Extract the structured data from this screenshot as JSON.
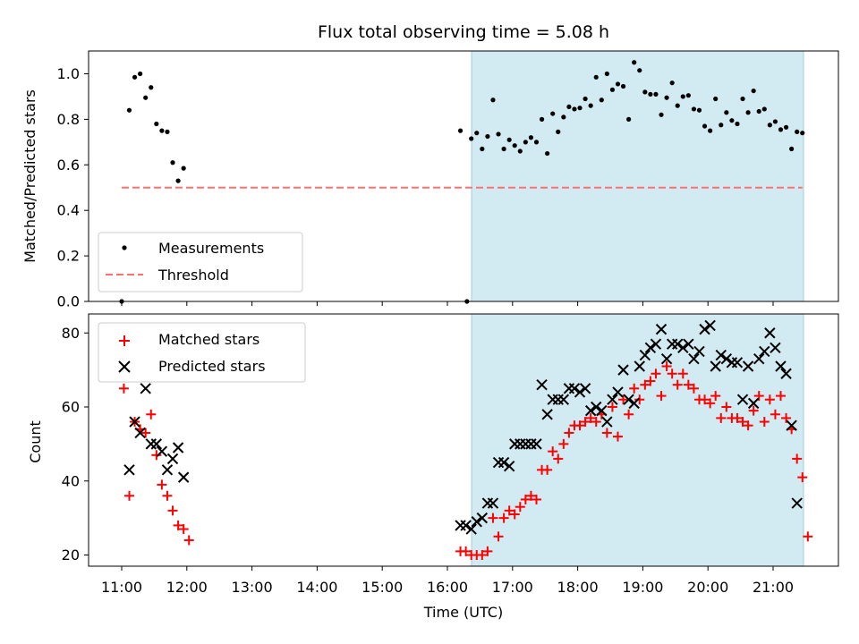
{
  "chart_data": [
    {
      "type": "scatter",
      "title": "Flux total observing time = 5.08 h",
      "xlabel": "",
      "ylabel": "Matched/Predicted stars",
      "ylim": [
        0.0,
        1.1
      ],
      "yticks": [
        "0.0",
        "0.2",
        "0.4",
        "0.6",
        "0.8",
        "1.0"
      ],
      "legend_position": "lower-left",
      "highlight_span": {
        "start": "16:24",
        "end": "21:30",
        "color": "#add8e6"
      },
      "series": [
        {
          "name": "Measurements",
          "marker": "dot",
          "color": "#000000",
          "points": [
            [
              "11:00",
              0.0
            ],
            [
              "11:07",
              0.84
            ],
            [
              "11:12",
              0.985
            ],
            [
              "11:17",
              1.0
            ],
            [
              "11:22",
              0.895
            ],
            [
              "11:27",
              0.94
            ],
            [
              "11:32",
              0.78
            ],
            [
              "11:37",
              0.75
            ],
            [
              "11:42",
              0.745
            ],
            [
              "11:47",
              0.61
            ],
            [
              "11:52",
              0.53
            ],
            [
              "11:57",
              0.585
            ],
            [
              "16:12",
              0.75
            ],
            [
              "16:18",
              0.0
            ],
            [
              "16:22",
              0.715
            ],
            [
              "16:27",
              0.74
            ],
            [
              "16:32",
              0.67
            ],
            [
              "16:37",
              0.725
            ],
            [
              "16:42",
              0.885
            ],
            [
              "16:47",
              0.735
            ],
            [
              "16:52",
              0.67
            ],
            [
              "16:57",
              0.71
            ],
            [
              "17:02",
              0.685
            ],
            [
              "17:07",
              0.66
            ],
            [
              "17:12",
              0.7
            ],
            [
              "17:17",
              0.72
            ],
            [
              "17:22",
              0.7
            ],
            [
              "17:27",
              0.8
            ],
            [
              "17:32",
              0.65
            ],
            [
              "17:37",
              0.825
            ],
            [
              "17:42",
              0.745
            ],
            [
              "17:47",
              0.81
            ],
            [
              "17:52",
              0.855
            ],
            [
              "17:57",
              0.845
            ],
            [
              "18:02",
              0.85
            ],
            [
              "18:07",
              0.89
            ],
            [
              "18:12",
              0.86
            ],
            [
              "18:17",
              0.985
            ],
            [
              "18:22",
              0.885
            ],
            [
              "18:27",
              1.0
            ],
            [
              "18:32",
              0.93
            ],
            [
              "18:37",
              0.955
            ],
            [
              "18:42",
              0.945
            ],
            [
              "18:47",
              0.8
            ],
            [
              "18:52",
              1.05
            ],
            [
              "18:57",
              1.015
            ],
            [
              "19:02",
              0.92
            ],
            [
              "19:07",
              0.91
            ],
            [
              "19:12",
              0.91
            ],
            [
              "19:17",
              0.82
            ],
            [
              "19:22",
              0.895
            ],
            [
              "19:27",
              0.96
            ],
            [
              "19:32",
              0.86
            ],
            [
              "19:37",
              0.9
            ],
            [
              "19:42",
              0.905
            ],
            [
              "19:47",
              0.845
            ],
            [
              "19:52",
              0.84
            ],
            [
              "19:57",
              0.77
            ],
            [
              "20:02",
              0.75
            ],
            [
              "20:07",
              0.89
            ],
            [
              "20:12",
              0.775
            ],
            [
              "20:17",
              0.83
            ],
            [
              "20:22",
              0.795
            ],
            [
              "20:27",
              0.78
            ],
            [
              "20:32",
              0.89
            ],
            [
              "20:37",
              0.83
            ],
            [
              "20:42",
              0.925
            ],
            [
              "20:47",
              0.835
            ],
            [
              "20:52",
              0.845
            ],
            [
              "20:57",
              0.775
            ],
            [
              "21:02",
              0.79
            ],
            [
              "21:07",
              0.755
            ],
            [
              "21:12",
              0.765
            ],
            [
              "21:17",
              0.67
            ],
            [
              "21:22",
              0.745
            ],
            [
              "21:27",
              0.74
            ]
          ]
        },
        {
          "name": "Threshold",
          "marker": "dashed-line",
          "color": "#ff7070",
          "points": [
            [
              "11:00",
              0.5
            ],
            [
              "21:27",
              0.5
            ]
          ]
        }
      ]
    },
    {
      "type": "scatter",
      "xlabel": "Time (UTC)",
      "ylabel": "Count",
      "ylim": [
        16.5,
        85.5
      ],
      "yticks": [
        "20",
        "40",
        "60",
        "80"
      ],
      "xlim": [
        "10:32",
        "21:55"
      ],
      "xticks": [
        "11:00",
        "12:00",
        "13:00",
        "14:00",
        "15:00",
        "16:00",
        "17:00",
        "18:00",
        "19:00",
        "20:00",
        "21:00"
      ],
      "legend_position": "top-left",
      "highlight_span": {
        "start": "16:24",
        "end": "21:30",
        "color": "#add8e6"
      },
      "series": [
        {
          "name": "Matched stars",
          "marker": "plus",
          "color": "#ff0000",
          "points": [
            [
              "11:02",
              65
            ],
            [
              "11:07",
              36
            ],
            [
              "11:12",
              56
            ],
            [
              "11:17",
              54
            ],
            [
              "11:22",
              53
            ],
            [
              "11:27",
              58
            ],
            [
              "11:32",
              47
            ],
            [
              "11:37",
              39
            ],
            [
              "11:42",
              36
            ],
            [
              "11:47",
              32
            ],
            [
              "11:52",
              28
            ],
            [
              "11:57",
              27
            ],
            [
              "12:02",
              24
            ],
            [
              "16:12",
              21
            ],
            [
              "16:17",
              21
            ],
            [
              "16:22",
              20
            ],
            [
              "16:27",
              20
            ],
            [
              "16:32",
              20
            ],
            [
              "16:37",
              21
            ],
            [
              "16:42",
              30
            ],
            [
              "16:47",
              25
            ],
            [
              "16:52",
              30
            ],
            [
              "16:57",
              32
            ],
            [
              "17:02",
              31
            ],
            [
              "17:07",
              33
            ],
            [
              "17:12",
              35
            ],
            [
              "17:17",
              36
            ],
            [
              "17:22",
              35
            ],
            [
              "17:27",
              43
            ],
            [
              "17:32",
              43
            ],
            [
              "17:37",
              48
            ],
            [
              "17:42",
              46
            ],
            [
              "17:47",
              50
            ],
            [
              "17:52",
              53
            ],
            [
              "17:57",
              55
            ],
            [
              "18:02",
              55
            ],
            [
              "18:07",
              56
            ],
            [
              "18:12",
              57
            ],
            [
              "18:17",
              56
            ],
            [
              "18:22",
              58
            ],
            [
              "18:27",
              53
            ],
            [
              "18:32",
              60
            ],
            [
              "18:37",
              52
            ],
            [
              "18:42",
              62
            ],
            [
              "18:47",
              58
            ],
            [
              "18:52",
              65
            ],
            [
              "18:57",
              62
            ],
            [
              "19:02",
              66
            ],
            [
              "19:07",
              67
            ],
            [
              "19:12",
              69
            ],
            [
              "19:17",
              63
            ],
            [
              "19:22",
              71
            ],
            [
              "19:27",
              69
            ],
            [
              "19:32",
              66
            ],
            [
              "19:37",
              69
            ],
            [
              "19:42",
              66
            ],
            [
              "19:47",
              65
            ],
            [
              "19:52",
              62
            ],
            [
              "19:57",
              62
            ],
            [
              "20:02",
              61
            ],
            [
              "20:07",
              63
            ],
            [
              "20:12",
              57
            ],
            [
              "20:17",
              60
            ],
            [
              "20:22",
              57
            ],
            [
              "20:27",
              57
            ],
            [
              "20:32",
              56
            ],
            [
              "20:37",
              55
            ],
            [
              "20:42",
              59
            ],
            [
              "20:47",
              63
            ],
            [
              "20:52",
              56
            ],
            [
              "20:57",
              62
            ],
            [
              "21:02",
              58
            ],
            [
              "21:07",
              63
            ],
            [
              "21:12",
              57
            ],
            [
              "21:17",
              54
            ],
            [
              "21:22",
              46
            ],
            [
              "21:27",
              41
            ],
            [
              "21:32",
              25
            ]
          ]
        },
        {
          "name": "Predicted stars",
          "marker": "x",
          "color": "#000000",
          "points": [
            [
              "11:07",
              43
            ],
            [
              "11:12",
              56
            ],
            [
              "11:17",
              53
            ],
            [
              "11:22",
              65
            ],
            [
              "11:27",
              50
            ],
            [
              "11:32",
              50
            ],
            [
              "11:37",
              48
            ],
            [
              "11:42",
              43
            ],
            [
              "11:47",
              46
            ],
            [
              "11:52",
              49
            ],
            [
              "11:57",
              41
            ],
            [
              "16:12",
              28
            ],
            [
              "16:17",
              28
            ],
            [
              "16:22",
              27
            ],
            [
              "16:27",
              29
            ],
            [
              "16:32",
              30
            ],
            [
              "16:37",
              34
            ],
            [
              "16:42",
              34
            ],
            [
              "16:47",
              45
            ],
            [
              "16:52",
              45
            ],
            [
              "16:57",
              44
            ],
            [
              "17:02",
              50
            ],
            [
              "17:07",
              50
            ],
            [
              "17:12",
              50
            ],
            [
              "17:17",
              50
            ],
            [
              "17:22",
              50
            ],
            [
              "17:27",
              66
            ],
            [
              "17:32",
              58
            ],
            [
              "17:37",
              62
            ],
            [
              "17:42",
              62
            ],
            [
              "17:47",
              62
            ],
            [
              "17:52",
              65
            ],
            [
              "17:57",
              65
            ],
            [
              "18:02",
              64
            ],
            [
              "18:07",
              65
            ],
            [
              "18:12",
              59
            ],
            [
              "18:17",
              60
            ],
            [
              "18:22",
              59
            ],
            [
              "18:27",
              56
            ],
            [
              "18:32",
              62
            ],
            [
              "18:37",
              64
            ],
            [
              "18:42",
              70
            ],
            [
              "18:47",
              62
            ],
            [
              "18:52",
              61
            ],
            [
              "18:57",
              71
            ],
            [
              "19:02",
              74
            ],
            [
              "19:07",
              76
            ],
            [
              "19:12",
              77
            ],
            [
              "19:17",
              81
            ],
            [
              "19:22",
              73
            ],
            [
              "19:27",
              77
            ],
            [
              "19:32",
              77
            ],
            [
              "19:37",
              76
            ],
            [
              "19:42",
              77
            ],
            [
              "19:47",
              73
            ],
            [
              "19:52",
              75
            ],
            [
              "19:57",
              81
            ],
            [
              "20:02",
              82
            ],
            [
              "20:07",
              71
            ],
            [
              "20:12",
              74
            ],
            [
              "20:17",
              73
            ],
            [
              "20:22",
              72
            ],
            [
              "20:27",
              72
            ],
            [
              "20:32",
              62
            ],
            [
              "20:37",
              71
            ],
            [
              "20:42",
              61
            ],
            [
              "20:47",
              73
            ],
            [
              "20:52",
              75
            ],
            [
              "20:57",
              80
            ],
            [
              "21:02",
              76
            ],
            [
              "21:07",
              71
            ],
            [
              "21:12",
              69
            ],
            [
              "21:17",
              55
            ],
            [
              "21:22",
              34
            ]
          ]
        }
      ]
    }
  ]
}
